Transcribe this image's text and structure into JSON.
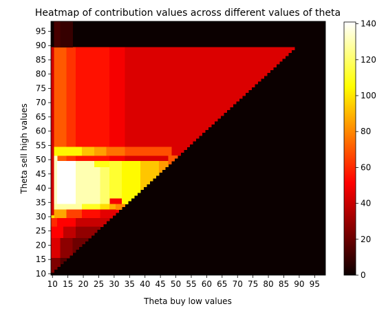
{
  "chart_data": {
    "type": "heatmap",
    "title": "Heatmap of contribution values across different values of theta",
    "xlabel": "Theta buy low values",
    "ylabel": "Theta sell high values",
    "x_range": [
      10,
      99
    ],
    "y_range": [
      10,
      99
    ],
    "x_ticks": [
      "10",
      "15",
      "20",
      "25",
      "30",
      "35",
      "40",
      "45",
      "50",
      "55",
      "60",
      "65",
      "70",
      "75",
      "80",
      "85",
      "90",
      "95"
    ],
    "y_ticks": [
      "10",
      "15",
      "20",
      "25",
      "30",
      "35",
      "40",
      "45",
      "50",
      "55",
      "60",
      "65",
      "70",
      "75",
      "80",
      "85",
      "90",
      "95"
    ],
    "colormap": "hot",
    "color_range": [
      0,
      141
    ],
    "colorbar_ticks": [
      "0",
      "20",
      "40",
      "60",
      "80",
      "100",
      "120",
      "140"
    ],
    "x_bands": [
      {
        "from": 10,
        "to": 11,
        "value": 40
      },
      {
        "from": 11,
        "to": 15,
        "value": 70
      },
      {
        "from": 15,
        "to": 18,
        "value": 62
      },
      {
        "from": 18,
        "to": 29,
        "value": 55
      },
      {
        "from": 29,
        "to": 34,
        "value": 48
      },
      {
        "from": 34,
        "to": 90,
        "value": 42
      }
    ],
    "blocks": [
      {
        "x": [
          11,
          12
        ],
        "y": [
          33,
          52
        ],
        "value": 132
      },
      {
        "x": [
          12,
          18
        ],
        "y": [
          35,
          50
        ],
        "value": 141
      },
      {
        "x": [
          11,
          20
        ],
        "y": [
          52,
          55
        ],
        "value": 103
      },
      {
        "x": [
          20,
          24
        ],
        "y": [
          52,
          55
        ],
        "value": 92
      },
      {
        "x": [
          24,
          28
        ],
        "y": [
          52,
          55
        ],
        "value": 85
      },
      {
        "x": [
          28,
          34
        ],
        "y": [
          52,
          55
        ],
        "value": 75
      },
      {
        "x": [
          34,
          49
        ],
        "y": [
          52,
          55
        ],
        "value": 68
      },
      {
        "x": [
          18,
          26
        ],
        "y": [
          35,
          50
        ],
        "value": 130
      },
      {
        "x": [
          26,
          29
        ],
        "y": [
          35,
          50
        ],
        "value": 120
      },
      {
        "x": [
          24,
          29
        ],
        "y": [
          48,
          50
        ],
        "value": 108
      },
      {
        "x": [
          29,
          33
        ],
        "y": [
          37,
          50
        ],
        "value": 112
      },
      {
        "x": [
          33,
          39
        ],
        "y": [
          35,
          50
        ],
        "value": 104
      },
      {
        "x": [
          39,
          45
        ],
        "y": [
          35,
          50
        ],
        "value": 93
      },
      {
        "x": [
          45,
          49
        ],
        "y": [
          40,
          50
        ],
        "value": 84
      },
      {
        "x": [
          48,
          52
        ],
        "y": [
          45,
          52
        ],
        "value": 70
      },
      {
        "x": [
          11,
          20
        ],
        "y": [
          33,
          35
        ],
        "value": 128
      },
      {
        "x": [
          20,
          26
        ],
        "y": [
          33,
          35
        ],
        "value": 110
      },
      {
        "x": [
          26,
          29
        ],
        "y": [
          33,
          35
        ],
        "value": 98
      },
      {
        "x": [
          29,
          31
        ],
        "y": [
          33,
          35
        ],
        "value": 88
      },
      {
        "x": [
          31,
          36
        ],
        "y": [
          33,
          35
        ],
        "value": 80
      },
      {
        "x": [
          11,
          15
        ],
        "y": [
          30,
          33
        ],
        "value": 86
      },
      {
        "x": [
          15,
          20
        ],
        "y": [
          30,
          33
        ],
        "value": 65
      },
      {
        "x": [
          20,
          26
        ],
        "y": [
          30,
          33
        ],
        "value": 54
      },
      {
        "x": [
          26,
          31
        ],
        "y": [
          30,
          33
        ],
        "value": 44
      },
      {
        "x": [
          10,
          11
        ],
        "y": [
          30,
          31
        ],
        "value": 98
      },
      {
        "x": [
          10,
          12
        ],
        "y": [
          27,
          30
        ],
        "value": 60
      },
      {
        "x": [
          12,
          18
        ],
        "y": [
          27,
          30
        ],
        "value": 50
      },
      {
        "x": [
          18,
          30
        ],
        "y": [
          27,
          30
        ],
        "value": 38
      },
      {
        "x": [
          10,
          14
        ],
        "y": [
          23,
          27
        ],
        "value": 50
      },
      {
        "x": [
          14,
          18
        ],
        "y": [
          23,
          27
        ],
        "value": 36
      },
      {
        "x": [
          18,
          26
        ],
        "y": [
          23,
          27
        ],
        "value": 26
      },
      {
        "x": [
          10,
          13
        ],
        "y": [
          16,
          23
        ],
        "value": 42
      },
      {
        "x": [
          13,
          17
        ],
        "y": [
          16,
          23
        ],
        "value": 25
      },
      {
        "x": [
          17,
          22
        ],
        "y": [
          16,
          23
        ],
        "value": 18
      },
      {
        "x": [
          10,
          13
        ],
        "y": [
          11,
          16
        ],
        "value": 22
      },
      {
        "x": [
          13,
          16
        ],
        "y": [
          11,
          16
        ],
        "value": 12
      },
      {
        "x": [
          11,
          13
        ],
        "y": [
          90,
          99
        ],
        "value": 10
      },
      {
        "x": [
          13,
          17
        ],
        "y": [
          90,
          99
        ],
        "value": 6
      }
    ]
  }
}
